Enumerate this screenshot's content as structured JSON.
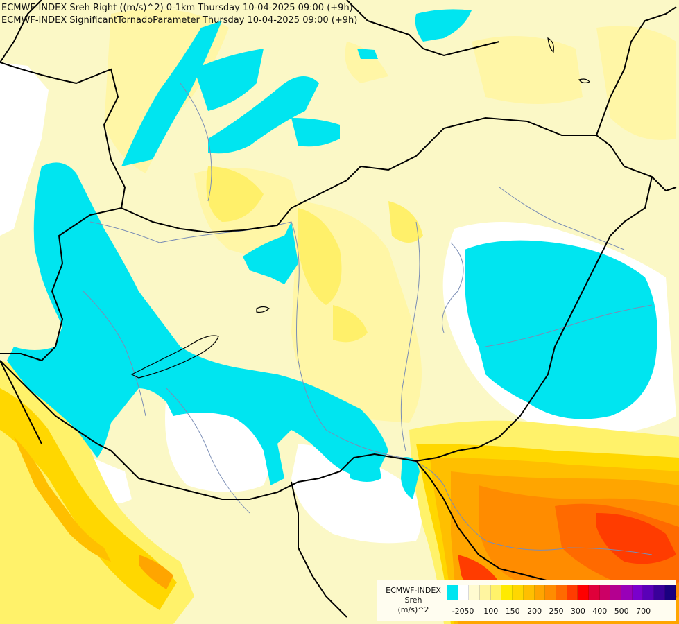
{
  "title": {
    "line1": "ECMWF-INDEX Sreh Right ((m/s)^2) 0-1km Thursday 10-04-2025 09:00 (+9h)",
    "line2": "ECMWF-INDEX SignificantTornadoParameter Thursday 10-04-2025 09:00 (+9h)"
  },
  "legend": {
    "title": [
      "ECMWF-INDEX",
      "Sreh",
      "(m/s)^2"
    ],
    "swatches": [
      "#00e5f0",
      "#ffffff",
      "#fffbd0",
      "#fff5a0",
      "#fff26a",
      "#ffea00",
      "#ffd700",
      "#ffbf00",
      "#ffa500",
      "#ff8c00",
      "#ff6a00",
      "#ff3c00",
      "#ff0000",
      "#e0003a",
      "#cc0066",
      "#b40090",
      "#9900b8",
      "#7a00cc",
      "#5a00b8",
      "#3a009a",
      "#1a0080"
    ],
    "ticks": [
      "-20",
      "50",
      "100",
      "150",
      "200",
      "250",
      "300",
      "400",
      "500",
      "700"
    ]
  },
  "colors": {
    "background": "#fbf8c6",
    "cyan": "#00e5f0",
    "white": "#ffffff",
    "pale_yellow": "#fff9b0",
    "yellow": "#fff26a",
    "gold": "#ffd400",
    "orange": "#ffa000",
    "red_orange": "#ff6a00",
    "red": "#ff2a00",
    "border": "#000000",
    "river": "#7a8db5"
  }
}
